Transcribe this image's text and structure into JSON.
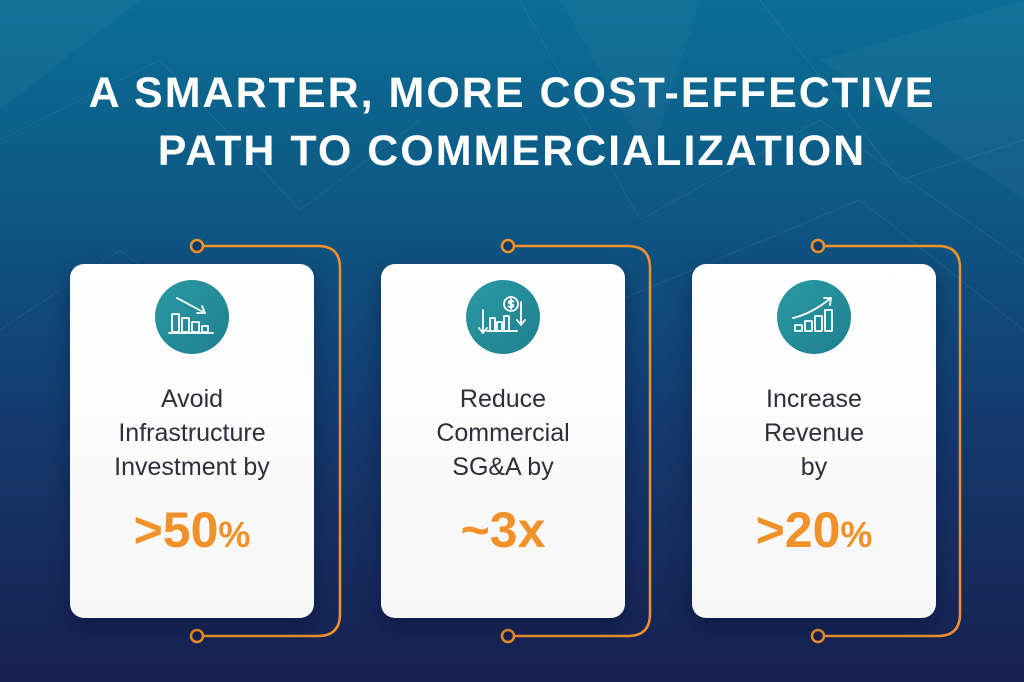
{
  "headline": {
    "line1": "A SMARTER, MORE COST-EFFECTIVE",
    "line2": "PATH TO COMMERCIALIZATION"
  },
  "colors": {
    "accent": "#f0912a",
    "icon_teal": "#1e7f8e",
    "bg_top": "#0a6e96",
    "bg_bottom": "#17204f",
    "card_text": "#2d2f3a"
  },
  "cards": [
    {
      "icon": "declining-bar-chart-icon",
      "lines": [
        "Avoid",
        "Infrastructure",
        "Investment by"
      ],
      "value": ">50",
      "unit": "%"
    },
    {
      "icon": "cost-reduction-chart-icon",
      "lines": [
        "Reduce",
        "Commercial",
        "SG&A by"
      ],
      "value": "~3x",
      "unit": ""
    },
    {
      "icon": "growth-bar-chart-icon",
      "lines": [
        "Increase",
        "Revenue",
        "by"
      ],
      "value": ">20",
      "unit": "%"
    }
  ]
}
